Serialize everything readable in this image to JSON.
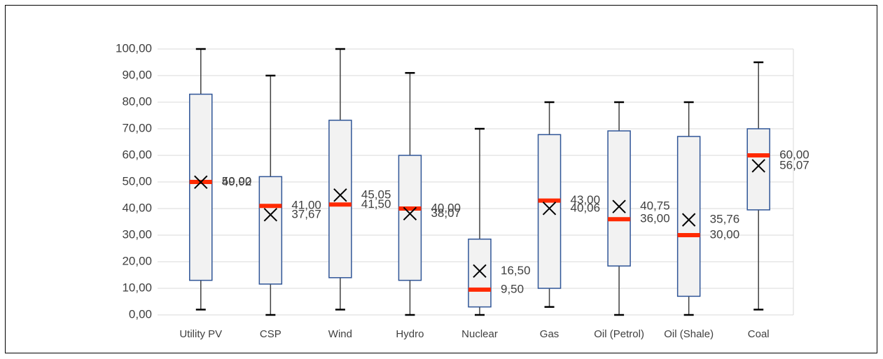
{
  "chart_data": {
    "type": "box",
    "categories": [
      "Utility PV",
      "CSP",
      "Wind",
      "Hydro",
      "Nuclear",
      "Gas",
      "Oil (Petrol)",
      "Oil (Shale)",
      "Coal"
    ],
    "boxes": [
      {
        "min": 2,
        "q1": 13,
        "median": 50,
        "q3": 83,
        "max": 100,
        "mean": 49.92,
        "median_label": "50,00",
        "mean_label": "49,92"
      },
      {
        "min": 0,
        "q1": 11.6,
        "median": 41,
        "q3": 52,
        "max": 90,
        "mean": 37.67,
        "median_label": "41,00",
        "mean_label": "37,67"
      },
      {
        "min": 2,
        "q1": 14,
        "median": 41.5,
        "q3": 73.2,
        "max": 100,
        "mean": 45.05,
        "median_label": "41,50",
        "mean_label": "45,05"
      },
      {
        "min": 0,
        "q1": 13,
        "median": 40,
        "q3": 60,
        "max": 91,
        "mean": 38.07,
        "median_label": "40,00",
        "mean_label": "38,07"
      },
      {
        "min": 0,
        "q1": 3,
        "median": 9.5,
        "q3": 28.5,
        "max": 70,
        "mean": 16.5,
        "median_label": "9,50",
        "mean_label": "16,50"
      },
      {
        "min": 3,
        "q1": 10,
        "median": 43,
        "q3": 67.8,
        "max": 80,
        "mean": 40.06,
        "median_label": "43,00",
        "mean_label": "40,06"
      },
      {
        "min": 0,
        "q1": 18.4,
        "median": 36,
        "q3": 69.2,
        "max": 80,
        "mean": 40.75,
        "median_label": "36,00",
        "mean_label": "40,75"
      },
      {
        "min": 0,
        "q1": 7,
        "median": 30,
        "q3": 67.1,
        "max": 80,
        "mean": 35.76,
        "median_label": "30,00",
        "mean_label": "35,76"
      },
      {
        "min": 2,
        "q1": 39.5,
        "median": 60,
        "q3": 70,
        "max": 95,
        "mean": 56.07,
        "median_label": "60,00",
        "mean_label": "56,07"
      }
    ],
    "box_color": "#f2f2f2",
    "box_edge_color": "#2f5597",
    "median_color": "#ff2a00",
    "mean_color": "#000000",
    "ylim": [
      0,
      100
    ],
    "yticks": [
      {
        "value": 0,
        "label": "0,00"
      },
      {
        "value": 10,
        "label": "10,00"
      },
      {
        "value": 20,
        "label": "20,00"
      },
      {
        "value": 30,
        "label": "30,00"
      },
      {
        "value": 40,
        "label": "40,00"
      },
      {
        "value": 50,
        "label": "50,00"
      },
      {
        "value": 60,
        "label": "60,00"
      },
      {
        "value": 70,
        "label": "70,00"
      },
      {
        "value": 80,
        "label": "80,00"
      },
      {
        "value": 90,
        "label": "90,00"
      },
      {
        "value": 100,
        "label": "100,00"
      }
    ],
    "grid": true
  }
}
